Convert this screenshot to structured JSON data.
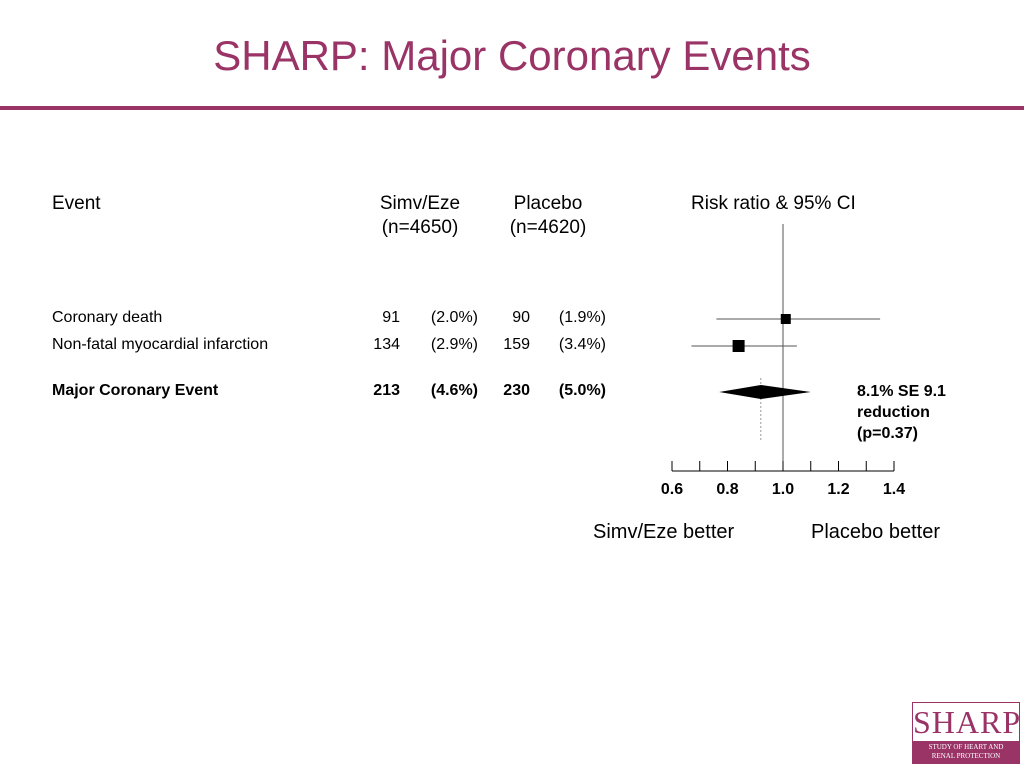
{
  "title": "SHARP: Major Coronary Events",
  "headers": {
    "event": "Event",
    "simv": "Simv/Eze",
    "simv_n": "(n=4650)",
    "placebo": "Placebo",
    "placebo_n": "(n=4620)",
    "risk": "Risk ratio & 95% CI"
  },
  "rows": [
    {
      "label": "Coronary death",
      "simv_count": "91",
      "simv_pct": "(2.0%)",
      "plac_count": "90",
      "plac_pct": "(1.9%)",
      "bold": false
    },
    {
      "label": "Non-fatal myocardial infarction",
      "simv_count": "134",
      "simv_pct": "(2.9%)",
      "plac_count": "159",
      "plac_pct": "(3.4%)",
      "bold": false
    },
    {
      "label": "Major Coronary Event",
      "simv_count": "213",
      "simv_pct": "(4.6%)",
      "plac_count": "230",
      "plac_pct": "(5.0%)",
      "bold": true
    }
  ],
  "note": [
    "8.1% SE 9.1",
    "reduction",
    "(p=0.37)"
  ],
  "better": {
    "left": "Simv/Eze better",
    "right": "Placebo better"
  },
  "logo": {
    "word": "SHARP",
    "line1": "STUDY OF HEART AND",
    "line2": "RENAL PROTECTION"
  },
  "chart_data": {
    "type": "forest",
    "xlim": [
      0.6,
      1.4
    ],
    "ticks": [
      "0.6",
      "0.8",
      "1.0",
      "1.2",
      "1.4"
    ],
    "tick_values": [
      0.6,
      0.8,
      1.0,
      1.2,
      1.4
    ],
    "minor_step": 0.1,
    "reference_line": 1.0,
    "overall_line": 0.92,
    "points": [
      {
        "label": "Coronary death",
        "rr": 1.01,
        "lo": 0.76,
        "hi": 1.35,
        "shape": "square",
        "size": "small"
      },
      {
        "label": "Non-fatal myocardial infarction",
        "rr": 0.84,
        "lo": 0.67,
        "hi": 1.05,
        "shape": "square",
        "size": "medium"
      },
      {
        "label": "Major Coronary Event",
        "rr": 0.92,
        "lo": 0.77,
        "hi": 1.1,
        "shape": "diamond"
      }
    ]
  }
}
